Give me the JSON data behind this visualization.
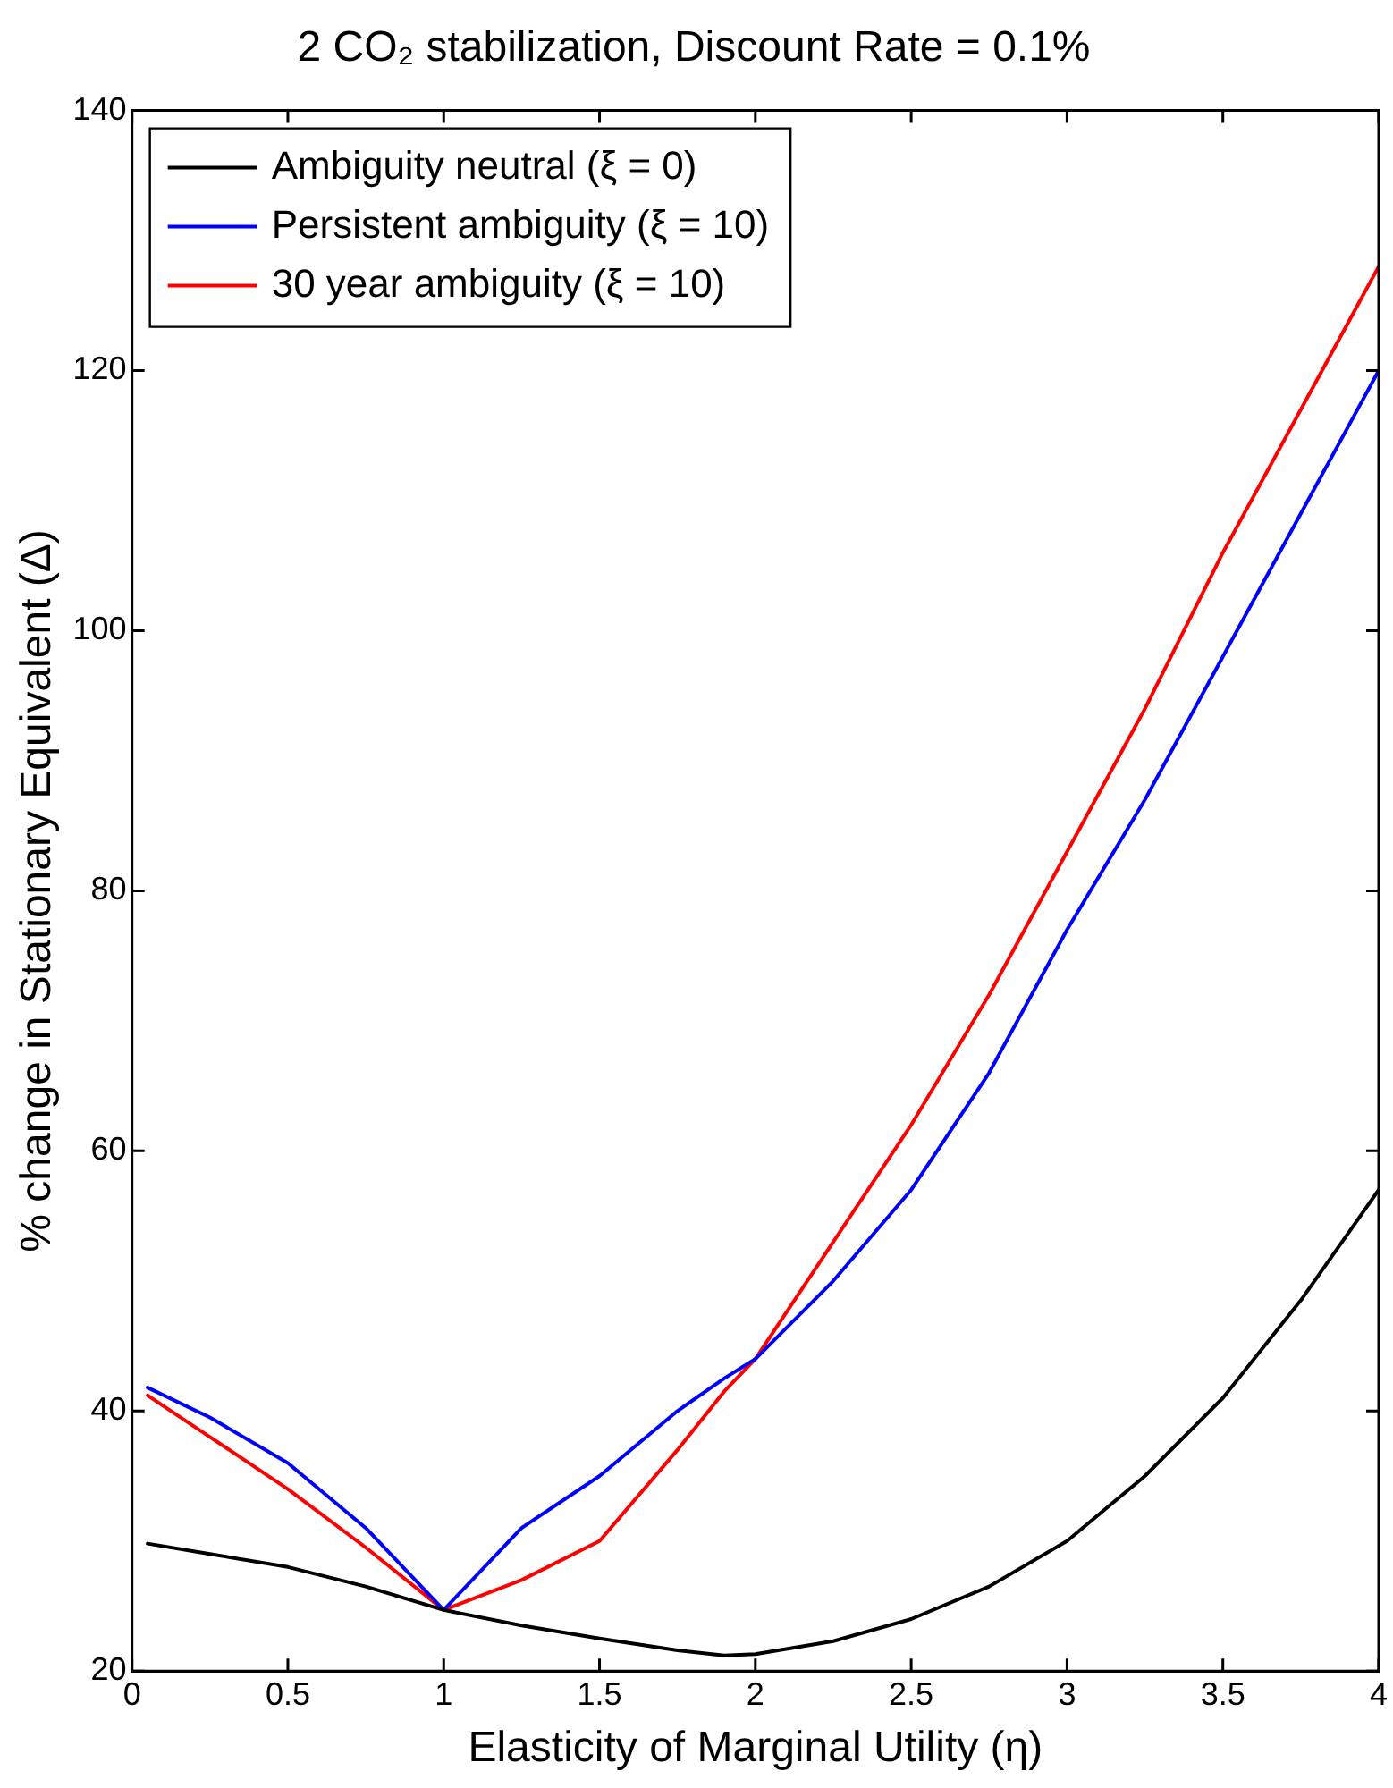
{
  "chart_data": {
    "type": "line",
    "title": "2 CO₂ stabilization, Discount Rate = 0.1%",
    "xlabel": "Elasticity of Marginal Utility (η)",
    "ylabel": "% change in Stationary Equivalent (Δ)",
    "x": [
      0.05,
      0.25,
      0.5,
      0.75,
      1,
      1.25,
      1.5,
      1.75,
      1.9,
      2,
      2.25,
      2.5,
      2.75,
      3,
      3.25,
      3.5,
      3.75,
      4
    ],
    "series": [
      {
        "name": "Ambiguity neutral (ξ = 0)",
        "color": "#000000",
        "values": [
          29.8,
          29,
          28,
          26.5,
          24.7,
          23.5,
          22.5,
          21.6,
          21.2,
          21.3,
          22.3,
          24,
          26.5,
          30,
          35,
          41,
          48.5,
          57
        ]
      },
      {
        "name": "Persistent ambiguity (ξ = 10)",
        "color": "#0000ff",
        "values": [
          41.8,
          39.5,
          36,
          31,
          24.7,
          31,
          35,
          40,
          42.5,
          44,
          50,
          57,
          66,
          77,
          87,
          98,
          109,
          120
        ]
      },
      {
        "name": "30 year ambiguity (ξ = 10)",
        "color": "#ff0000",
        "values": [
          41.2,
          38,
          34,
          29.5,
          24.7,
          27,
          30,
          37,
          41.5,
          44,
          53,
          62,
          72,
          83,
          94,
          106,
          117,
          128
        ]
      }
    ],
    "xlim": [
      0,
      4
    ],
    "xticks": [
      0,
      0.5,
      1,
      1.5,
      2,
      2.5,
      3,
      3.5,
      4
    ],
    "ylim": [
      20,
      140
    ],
    "yticks": [
      20,
      40,
      60,
      80,
      100,
      120,
      140
    ],
    "grid": false,
    "legend": "top left",
    "marker": "none",
    "line_style": "solid"
  }
}
